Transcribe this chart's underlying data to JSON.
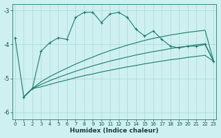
{
  "xlabel": "Humidex (Indice chaleur)",
  "bg_color": "#cff0f0",
  "grid_color": "#a8d8d8",
  "line_color": "#1a7a6e",
  "x_values": [
    0,
    1,
    2,
    3,
    4,
    5,
    6,
    7,
    8,
    9,
    10,
    11,
    12,
    13,
    14,
    15,
    16,
    17,
    18,
    19,
    20,
    21,
    22,
    23
  ],
  "s1": [
    -3.8,
    -5.55,
    -5.3,
    -4.2,
    -3.95,
    -3.8,
    -3.85,
    -3.2,
    -3.05,
    -3.05,
    -3.35,
    -3.1,
    -3.05,
    -3.2,
    -3.55,
    -3.75,
    -3.6,
    -3.85,
    -4.05,
    -4.1,
    -4.05,
    -4.05,
    -4.0,
    -4.5
  ],
  "s2": [
    null,
    -5.55,
    -5.3,
    -5.1,
    -4.95,
    -4.82,
    -4.7,
    -4.58,
    -4.47,
    -4.37,
    -4.27,
    -4.18,
    -4.1,
    -4.02,
    -3.95,
    -3.88,
    -3.82,
    -3.77,
    -3.72,
    -3.68,
    -3.64,
    -3.61,
    -3.58,
    -4.5
  ],
  "s3": [
    null,
    -5.55,
    -5.3,
    -5.18,
    -5.07,
    -4.97,
    -4.88,
    -4.79,
    -4.71,
    -4.63,
    -4.56,
    -4.49,
    -4.43,
    -4.37,
    -4.31,
    -4.26,
    -4.21,
    -4.17,
    -4.12,
    -4.08,
    -4.05,
    -4.01,
    -3.98,
    -4.5
  ],
  "s4": [
    null,
    -5.55,
    -5.3,
    -5.25,
    -5.18,
    -5.11,
    -5.05,
    -4.98,
    -4.92,
    -4.87,
    -4.81,
    -4.76,
    -4.71,
    -4.66,
    -4.62,
    -4.57,
    -4.53,
    -4.49,
    -4.45,
    -4.42,
    -4.38,
    -4.35,
    -4.32,
    -4.5
  ],
  "ylim": [
    -6.2,
    -2.8
  ],
  "xlim": [
    -0.3,
    23.3
  ],
  "yticks": [
    -6,
    -5,
    -4,
    -3
  ],
  "xticks": [
    0,
    1,
    2,
    3,
    4,
    5,
    6,
    7,
    8,
    9,
    10,
    11,
    12,
    13,
    14,
    15,
    16,
    17,
    18,
    19,
    20,
    21,
    22,
    23
  ]
}
